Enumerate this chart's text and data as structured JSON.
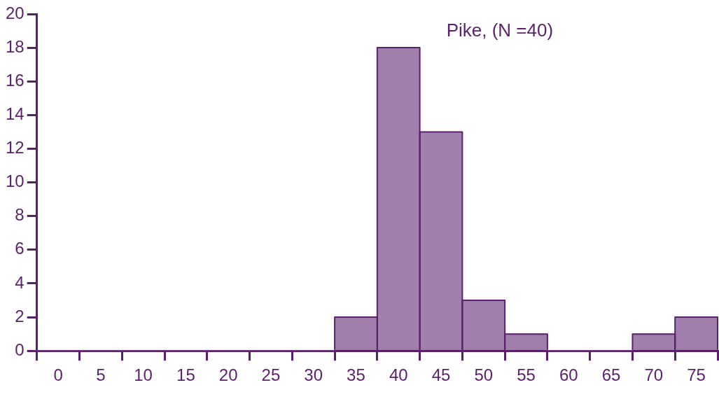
{
  "chart_data": {
    "type": "bar",
    "title": "Pike, (N =40)",
    "categories": [
      "0",
      "5",
      "10",
      "15",
      "20",
      "25",
      "30",
      "35",
      "40",
      "45",
      "50",
      "55",
      "60",
      "65",
      "70",
      "75"
    ],
    "values": [
      0,
      0,
      0,
      0,
      0,
      0,
      0,
      2,
      18,
      13,
      3,
      1,
      0,
      0,
      1,
      2
    ],
    "color": "#a07fad",
    "ylim": [
      0,
      20
    ],
    "yticks": [
      0,
      2,
      4,
      6,
      8,
      10,
      12,
      14,
      16,
      18,
      20
    ],
    "grid": false,
    "legend": false
  }
}
